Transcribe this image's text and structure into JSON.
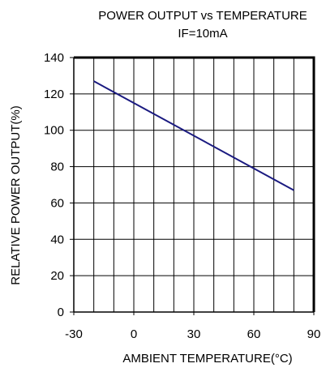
{
  "chart_data": {
    "type": "line",
    "title": "POWER OUTPUT vs TEMPERATURE",
    "subtitle": "IF=10mA",
    "xlabel": "AMBIENT TEMPERATURE(°C)",
    "ylabel": "RELATIVE POWER OUTPUT(%)",
    "xlim": [
      -30,
      90
    ],
    "ylim": [
      0,
      140
    ],
    "x_ticks": [
      -30,
      0,
      30,
      60,
      90
    ],
    "y_ticks": [
      0,
      20,
      40,
      60,
      80,
      100,
      120,
      140
    ],
    "x_grid_step": 10,
    "y_grid_step": 20,
    "grid": true,
    "series": [
      {
        "x": [
          -20,
          80
        ],
        "y": [
          127,
          67
        ],
        "color": "#1a1a80"
      }
    ]
  }
}
